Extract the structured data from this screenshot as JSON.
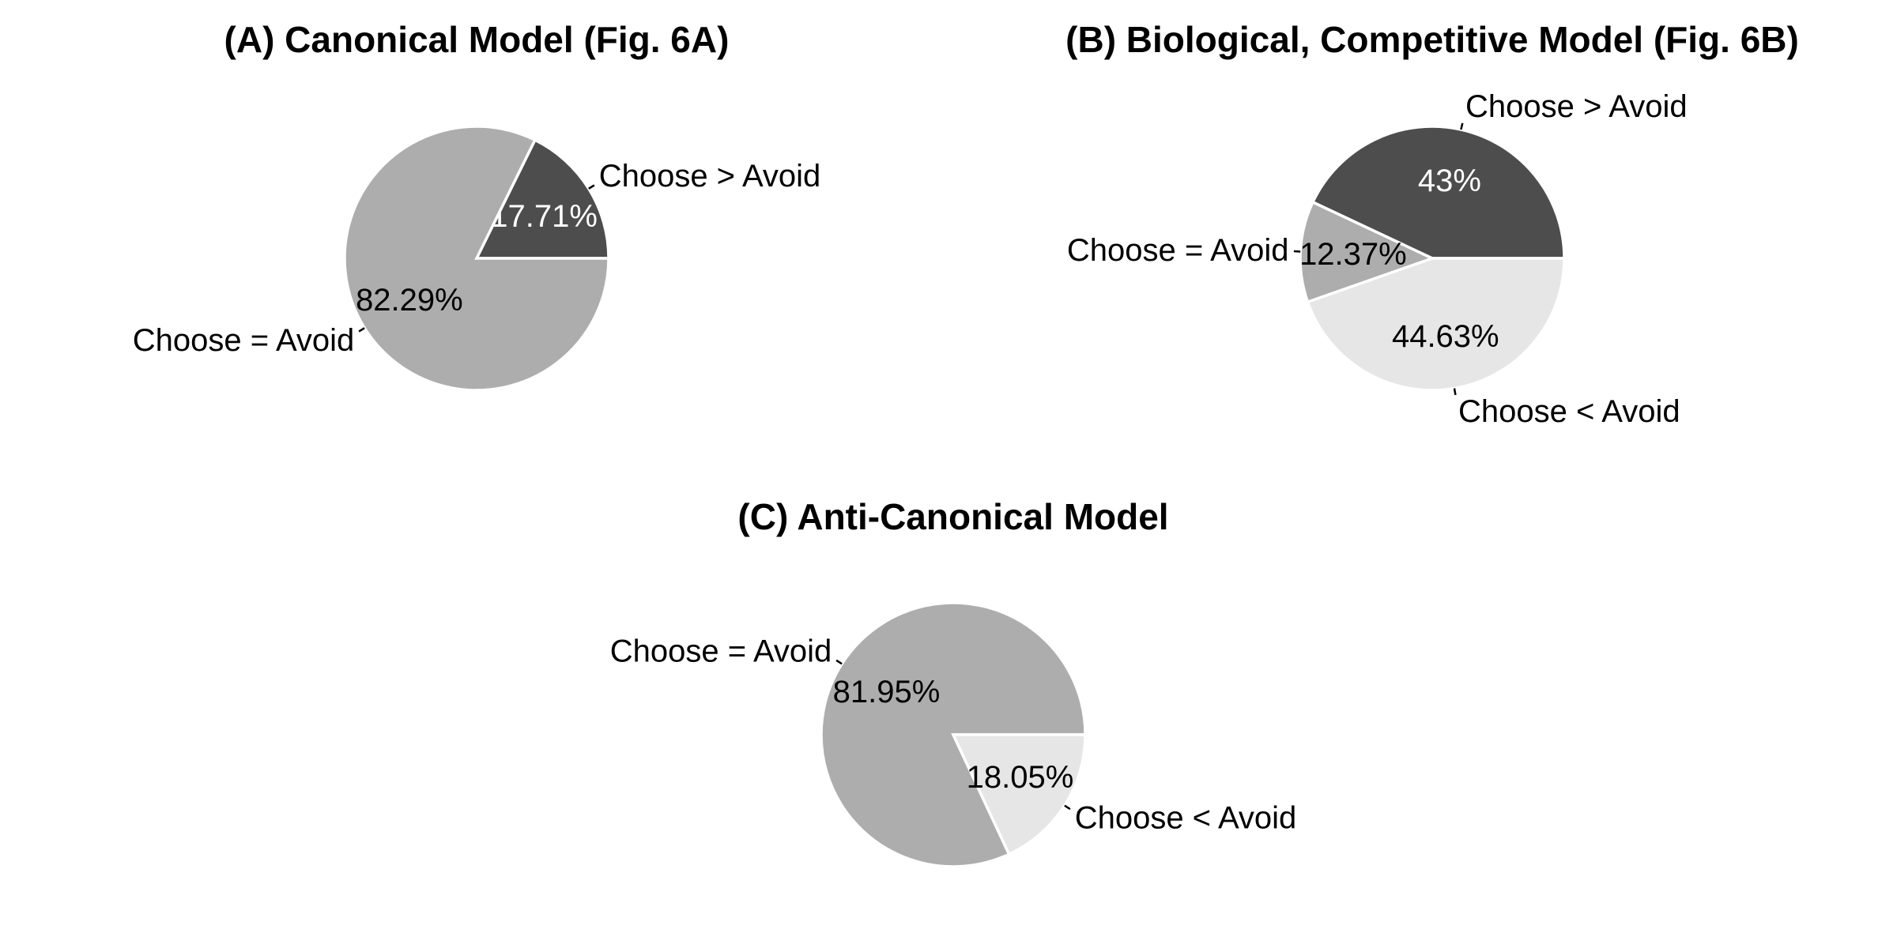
{
  "chart_data": [
    {
      "type": "pie",
      "title": "(A) Canonical Model (Fig. 6A)",
      "slices": [
        {
          "label": "Choose > Avoid",
          "value": 17.71,
          "pct_text": "17.71%",
          "color": "#4d4d4d",
          "pct_color": "#ffffff"
        },
        {
          "label": "Choose = Avoid",
          "value": 82.29,
          "pct_text": "82.29%",
          "color": "#adadad",
          "pct_color": "#000000"
        }
      ]
    },
    {
      "type": "pie",
      "title": "(B) Biological, Competitive Model (Fig. 6B)",
      "slices": [
        {
          "label": "Choose > Avoid",
          "value": 43,
          "pct_text": "43%",
          "color": "#4d4d4d",
          "pct_color": "#ffffff"
        },
        {
          "label": "Choose = Avoid",
          "value": 12.37,
          "pct_text": "12.37%",
          "color": "#adadad",
          "pct_color": "#000000"
        },
        {
          "label": "Choose < Avoid",
          "value": 44.63,
          "pct_text": "44.63%",
          "color": "#e6e6e6",
          "pct_color": "#000000"
        }
      ]
    },
    {
      "type": "pie",
      "title": "(C) Anti-Canonical Model",
      "slices": [
        {
          "label": "Choose = Avoid",
          "value": 81.95,
          "pct_text": "81.95%",
          "color": "#adadad",
          "pct_color": "#000000"
        },
        {
          "label": "Choose < Avoid",
          "value": 18.05,
          "pct_text": "18.05%",
          "color": "#e6e6e6",
          "pct_color": "#000000"
        }
      ]
    }
  ]
}
